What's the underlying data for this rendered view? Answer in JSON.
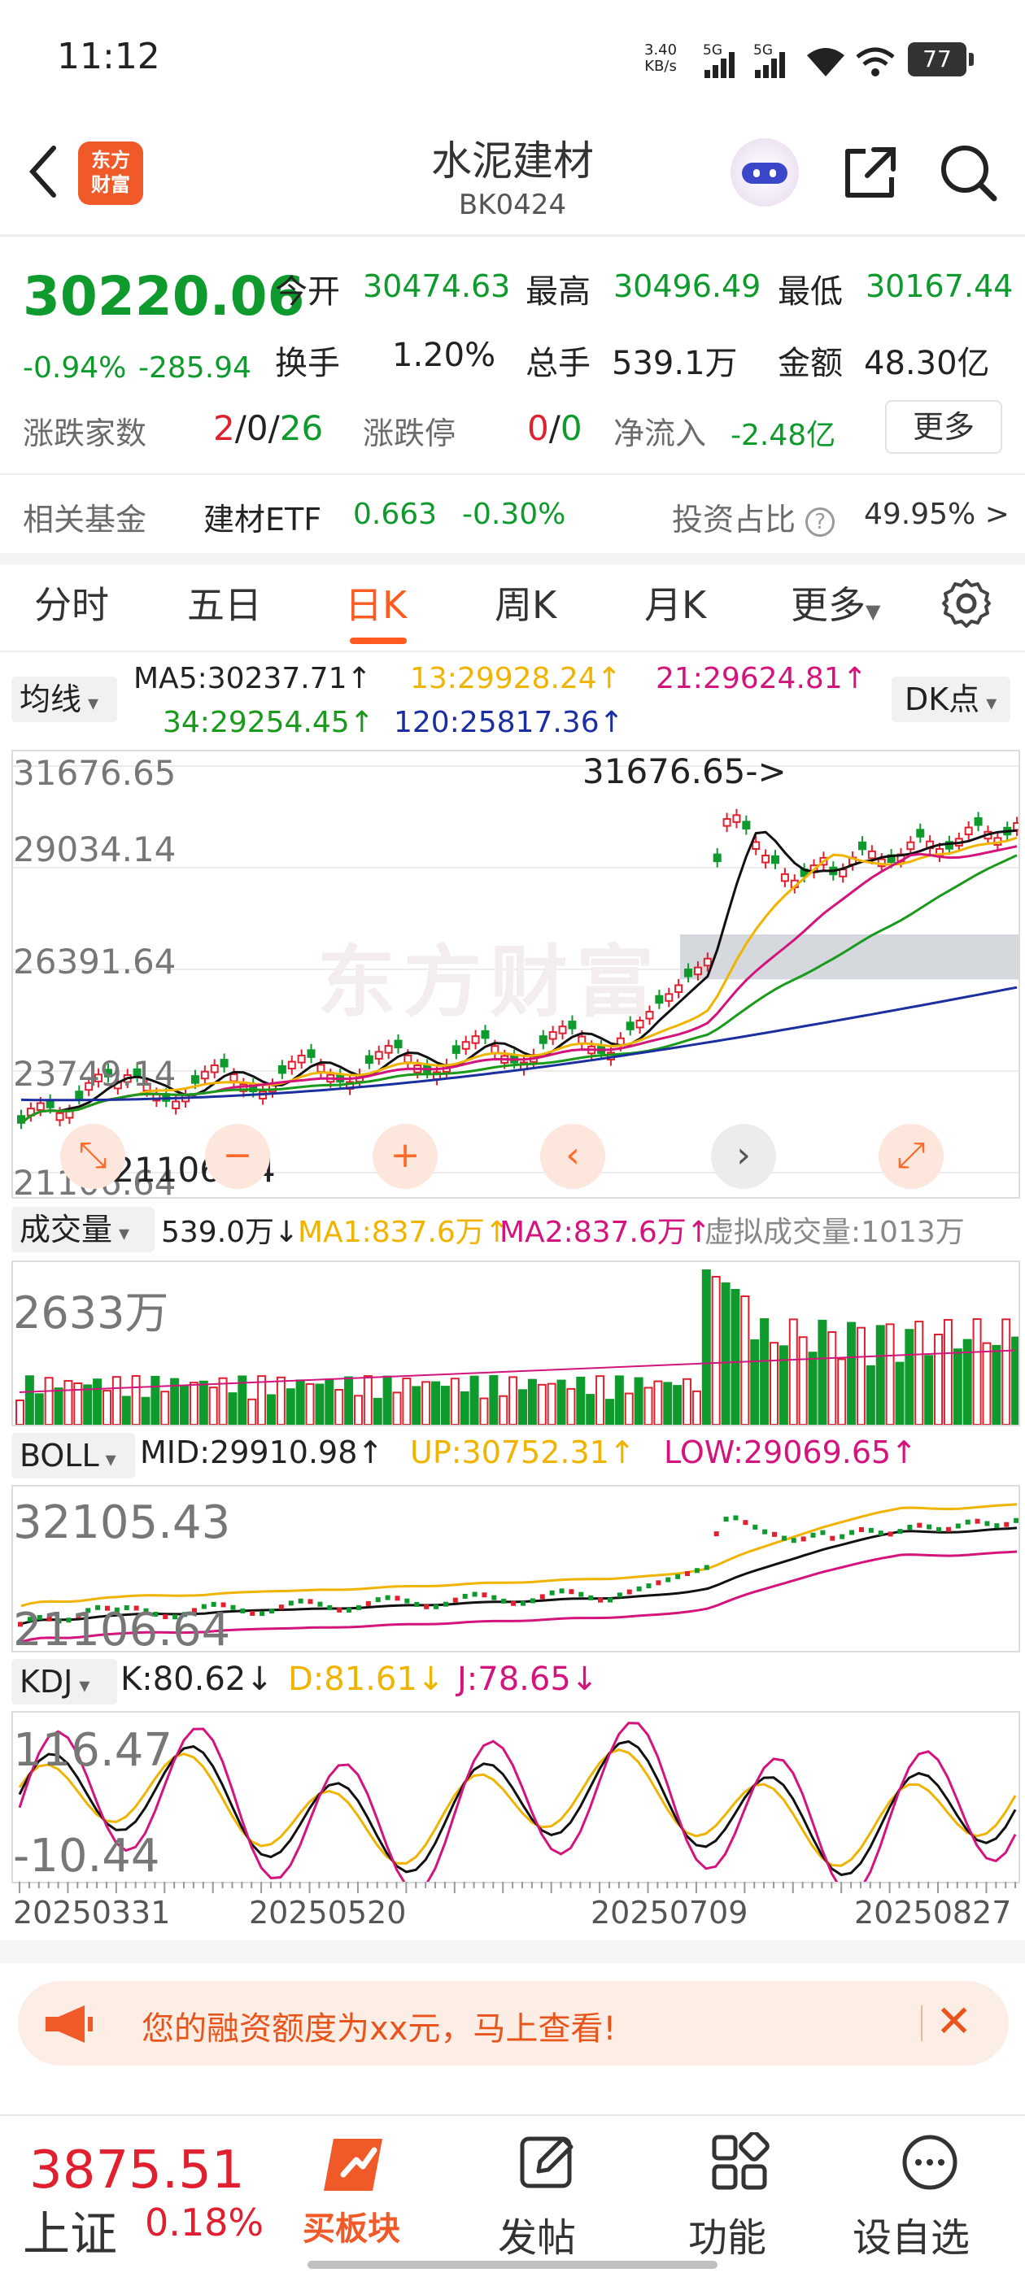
{
  "status_bar": {
    "time": "11:12",
    "speed_value": "3.40",
    "speed_unit": "KB/s",
    "net1": "5G",
    "net2": "5G",
    "battery": "77"
  },
  "header": {
    "logo_line1": "东方",
    "logo_line2": "财富",
    "title": "水泥建材",
    "code": "BK0424"
  },
  "quote": {
    "price": "30220.06",
    "change_pct": "-0.94%",
    "change": "-285.94",
    "open_label": "今开",
    "open": "30474.63",
    "high_label": "最高",
    "high": "30496.49",
    "low_label": "最低",
    "low": "30167.44",
    "turnover_label": "换手",
    "turnover": "1.20%",
    "volume_label": "总手",
    "volume": "539.1万",
    "amount_label": "金额",
    "amount": "48.30亿",
    "updown_label": "涨跌家数",
    "up": "2",
    "flat": "0",
    "down": "26",
    "slash": "/",
    "limit_label": "涨跌停",
    "limit_up": "0",
    "limit_down": "0",
    "netflow_label": "净流入",
    "netflow": "-2.48亿",
    "more": "更多",
    "fund_label": "相关基金",
    "fund_name": "建材ETF",
    "fund_price": "0.663",
    "fund_change": "-0.30%",
    "invest_label": "投资占比",
    "invest_value": "49.95% >"
  },
  "tabs": [
    "分时",
    "五日",
    "日K",
    "周K",
    "月K",
    "更多"
  ],
  "active_tab": "日K",
  "ma_bar": {
    "selector": "均线",
    "ma5": "MA5:30237.71↑",
    "ma13": "13:29928.24↑",
    "ma21": "21:29624.81↑",
    "ma34": "34:29254.45↑",
    "ma120": "120:25817.36↑",
    "dk": "DK点"
  },
  "kline": {
    "y1": "31676.65",
    "y2": "29034.14",
    "y3": "26391.64",
    "y4": "23749.14",
    "y5": "21106.64",
    "max_label": "31676.65->",
    "min_label": "<-21106.64"
  },
  "volume": {
    "selector": "成交量",
    "current": "539.0万↓",
    "ma1": "MA1:837.6万↑",
    "ma2": "MA2:837.6万↑",
    "virtual": "虚拟成交量:1013万",
    "ymax": "2633万"
  },
  "boll": {
    "selector": "BOLL",
    "mid": "MID:29910.98↑",
    "up": "UP:30752.31↑",
    "low": "LOW:29069.65↑",
    "ymax": "32105.43",
    "ymin": "21106.64"
  },
  "kdj": {
    "selector": "KDJ",
    "k": "K:80.62↓",
    "d": "D:81.61↓",
    "j": "J:78.65↓",
    "ymax": "116.47",
    "ymin": "-10.44"
  },
  "dates": [
    "20250331",
    "20250520",
    "20250709",
    "20250827"
  ],
  "banner": {
    "text": "您的融资额度为xx元，马上查看!"
  },
  "bottom": {
    "index_value": "3875.51",
    "index_name": "上证",
    "index_change": "0.18%",
    "buy_label": "买板块",
    "post": "发帖",
    "func": "功能",
    "watch": "设自选"
  },
  "colors": {
    "up": "#e0202e",
    "down": "#0e9a2c",
    "accent": "#ff5a1f",
    "ma5": "#111111",
    "ma13": "#f0b400",
    "ma21": "#d4147c",
    "ma34": "#1a9a1a",
    "ma120": "#1c2fa0"
  }
}
